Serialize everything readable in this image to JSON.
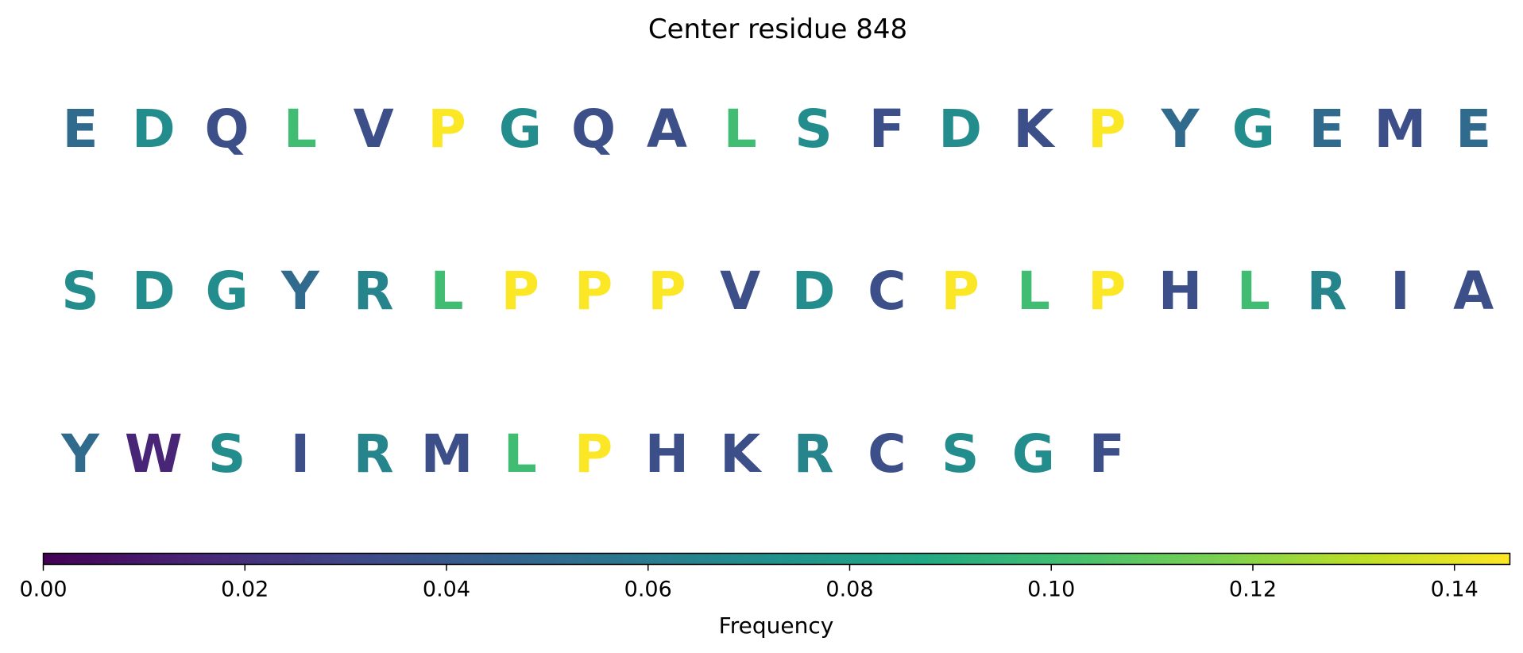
{
  "chart_data": {
    "type": "table",
    "title": "Center residue 848",
    "rows": [
      [
        "E",
        "D",
        "Q",
        "L",
        "V",
        "P",
        "G",
        "Q",
        "A",
        "L",
        "S",
        "F",
        "D",
        "K",
        "P",
        "Y",
        "G",
        "E",
        "M",
        "E"
      ],
      [
        "S",
        "D",
        "G",
        "Y",
        "R",
        "L",
        "P",
        "P",
        "P",
        "V",
        "D",
        "C",
        "P",
        "L",
        "P",
        "H",
        "L",
        "R",
        "I",
        "A"
      ],
      [
        "Y",
        "W",
        "S",
        "I",
        "R",
        "M",
        "L",
        "P",
        "H",
        "K",
        "R",
        "C",
        "S",
        "G",
        "F"
      ]
    ],
    "letter_frequencies": {
      "P": 0.145,
      "L": 0.1,
      "D": 0.07,
      "G": 0.07,
      "S": 0.07,
      "R": 0.065,
      "E": 0.05,
      "Y": 0.05,
      "A": 0.035,
      "C": 0.035,
      "F": 0.035,
      "H": 0.035,
      "I": 0.035,
      "K": 0.035,
      "M": 0.035,
      "Q": 0.035,
      "V": 0.035,
      "W": 0.015
    },
    "colorbar": {
      "label": "Frequency",
      "range": [
        0,
        0.1455
      ],
      "ticks": [
        0.0,
        0.02,
        0.04,
        0.06,
        0.08,
        0.1,
        0.12,
        0.14
      ],
      "tick_labels": [
        "0.00",
        "0.02",
        "0.04",
        "0.06",
        "0.08",
        "0.10",
        "0.12",
        "0.14"
      ],
      "colormap": "viridis",
      "orientation": "horizontal",
      "placement": "bottom"
    }
  }
}
